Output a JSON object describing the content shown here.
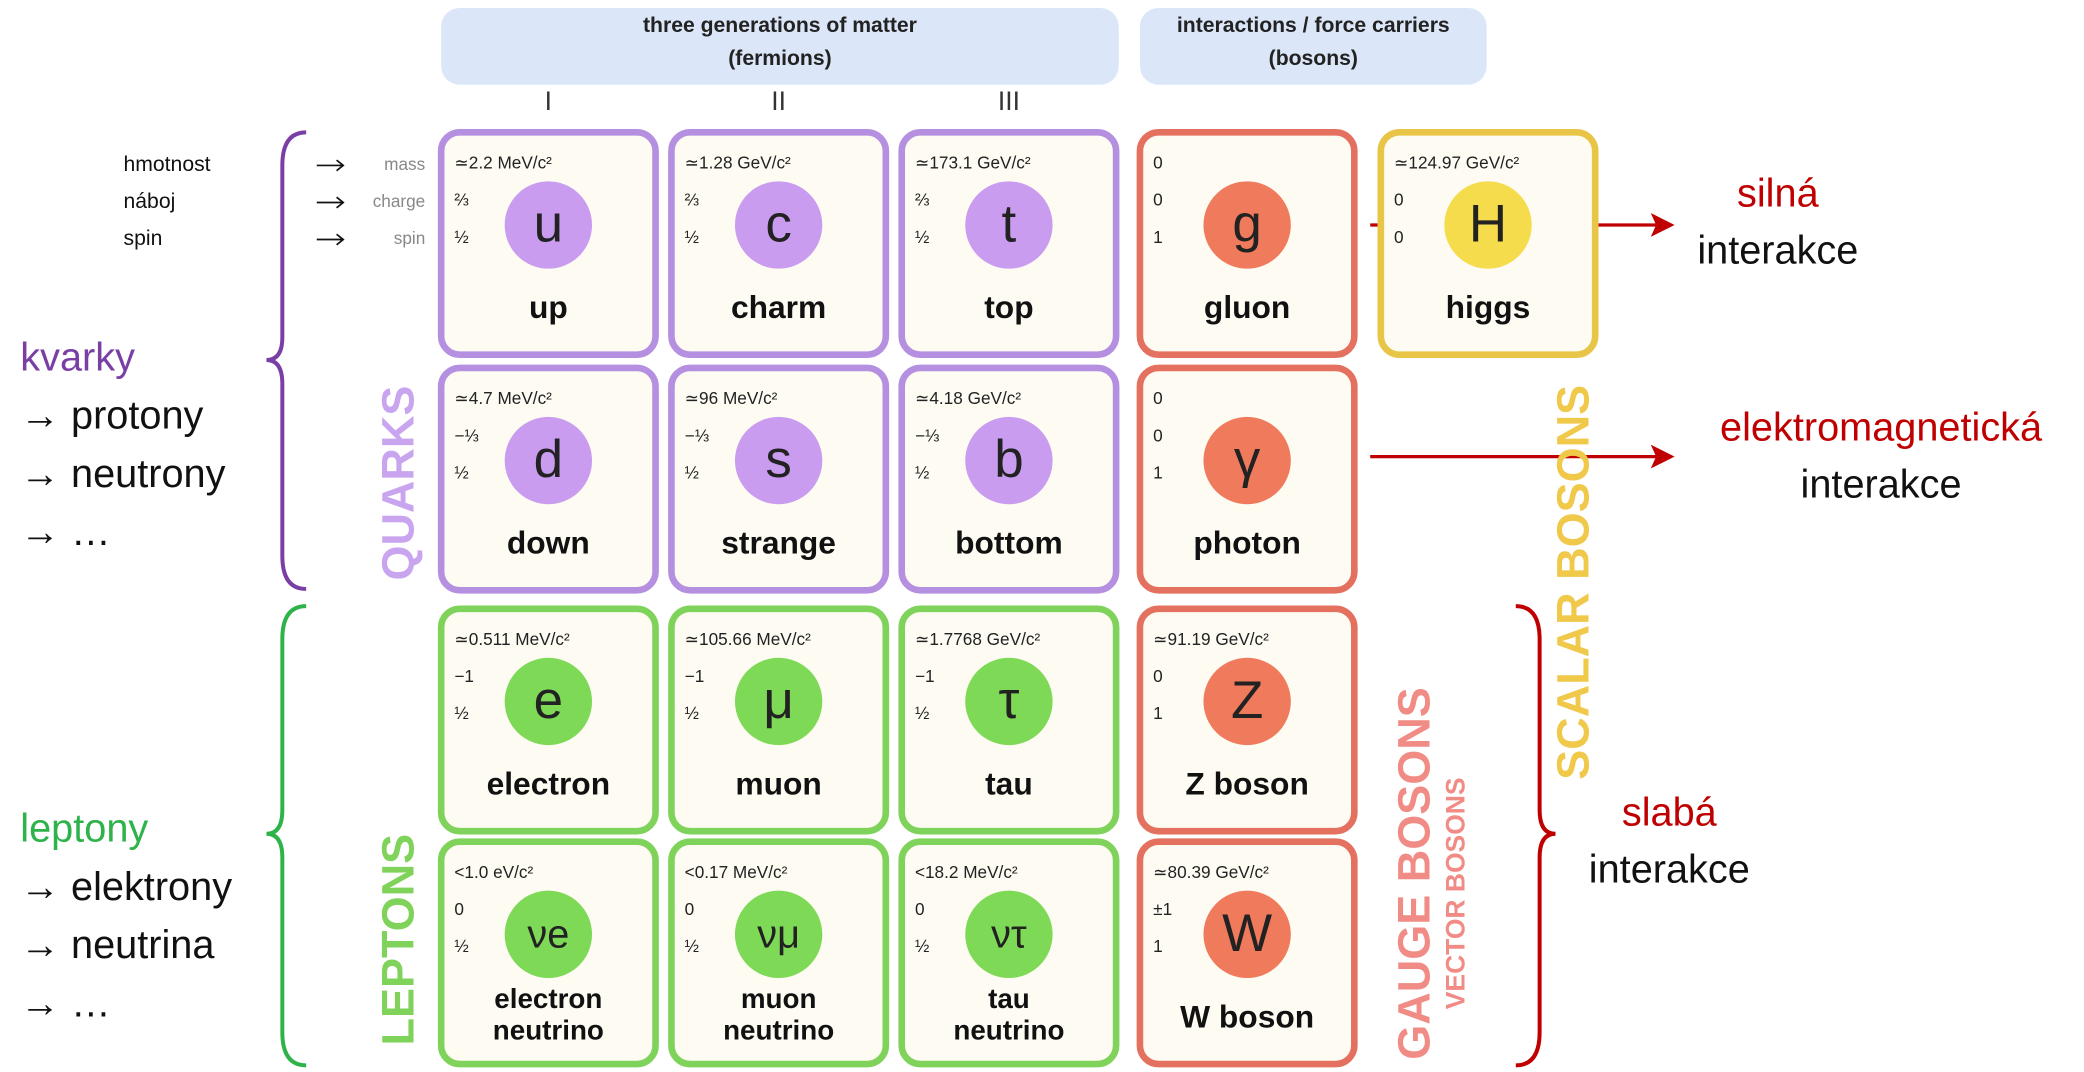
{
  "header": {
    "fermions": [
      "three generations of matter",
      "(fermions)"
    ],
    "bosons": [
      "interactions / force carriers",
      "(bosons)"
    ]
  },
  "generations": [
    "I",
    "II",
    "III"
  ],
  "property_labels": {
    "english": [
      "mass",
      "charge",
      "spin"
    ],
    "czech": [
      "hmotnost",
      "náboj",
      "spin"
    ]
  },
  "rows": [
    [
      {
        "symbol": "u",
        "name": [
          "up"
        ],
        "mass": "≃2.2 MeV/c²",
        "charge": "⅔",
        "spin": "½"
      },
      {
        "symbol": "c",
        "name": [
          "charm"
        ],
        "mass": "≃1.28 GeV/c²",
        "charge": "⅔",
        "spin": "½"
      },
      {
        "symbol": "t",
        "name": [
          "top"
        ],
        "mass": "≃173.1 GeV/c²",
        "charge": "⅔",
        "spin": "½"
      },
      {
        "symbol": "g",
        "name": [
          "gluon"
        ],
        "mass": "0",
        "charge": "0",
        "spin": "1"
      },
      {
        "symbol": "H",
        "name": [
          "higgs"
        ],
        "mass": "≃124.97 GeV/c²",
        "charge": "0",
        "spin": "0"
      }
    ],
    [
      {
        "symbol": "d",
        "name": [
          "down"
        ],
        "mass": "≃4.7 MeV/c²",
        "charge": "−⅓",
        "spin": "½"
      },
      {
        "symbol": "s",
        "name": [
          "strange"
        ],
        "mass": "≃96 MeV/c²",
        "charge": "−⅓",
        "spin": "½"
      },
      {
        "symbol": "b",
        "name": [
          "bottom"
        ],
        "mass": "≃4.18 GeV/c²",
        "charge": "−⅓",
        "spin": "½"
      },
      {
        "symbol": "γ",
        "name": [
          "photon"
        ],
        "mass": "0",
        "charge": "0",
        "spin": "1"
      }
    ],
    [
      {
        "symbol": "e",
        "name": [
          "electron"
        ],
        "mass": "≃0.511 MeV/c²",
        "charge": "−1",
        "spin": "½"
      },
      {
        "symbol": "μ",
        "name": [
          "muon"
        ],
        "mass": "≃105.66 MeV/c²",
        "charge": "−1",
        "spin": "½"
      },
      {
        "symbol": "τ",
        "name": [
          "tau"
        ],
        "mass": "≃1.7768 GeV/c²",
        "charge": "−1",
        "spin": "½"
      },
      {
        "symbol": "Z",
        "name": [
          "Z boson"
        ],
        "mass": "≃91.19 GeV/c²",
        "charge": "0",
        "spin": "1"
      }
    ],
    [
      {
        "symbol": "νe",
        "name": [
          "electron",
          "neutrino"
        ],
        "mass": "<1.0 eV/c²",
        "charge": "0",
        "spin": "½"
      },
      {
        "symbol": "νμ",
        "name": [
          "muon",
          "neutrino"
        ],
        "mass": "<0.17 MeV/c²",
        "charge": "0",
        "spin": "½"
      },
      {
        "symbol": "ντ",
        "name": [
          "tau",
          "neutrino"
        ],
        "mass": "<18.2 MeV/c²",
        "charge": "0",
        "spin": "½"
      },
      {
        "symbol": "W",
        "name": [
          "W boson"
        ],
        "mass": "≃80.39 GeV/c²",
        "charge": "±1",
        "spin": "1"
      }
    ]
  ],
  "group_labels": {
    "quarks": "QUARKS",
    "leptons": "LEPTONS",
    "gauge": "GAUGE BOSONS",
    "vector": "VECTOR BOSONS",
    "scalar": "SCALAR BOSONS"
  },
  "left_notes": {
    "quarks": [
      "kvarky",
      "→ protony",
      "→ neutrony",
      "→ …"
    ],
    "leptons": [
      "leptony",
      "→ elektrony",
      "→ neutrina",
      "→ …"
    ]
  },
  "right_notes": {
    "strong": [
      "silná",
      "interakce"
    ],
    "em": [
      "elektromagnetická",
      "interakce"
    ],
    "weak": [
      "slabá",
      "interakce"
    ]
  }
}
